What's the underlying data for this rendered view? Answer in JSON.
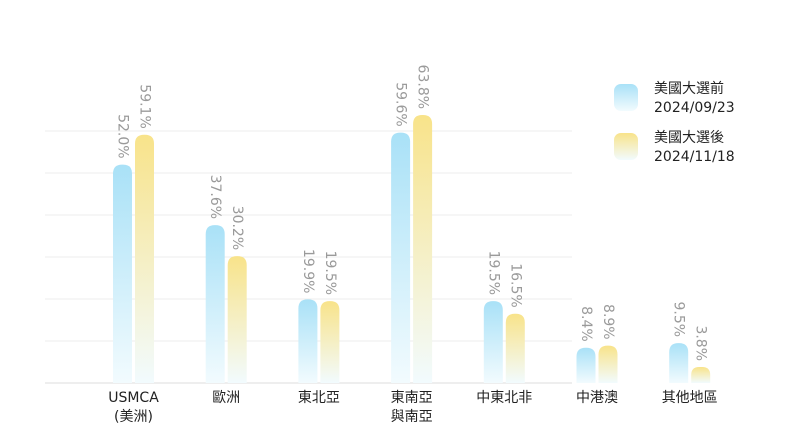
{
  "chart_data": {
    "type": "bar",
    "categories": [
      [
        "USMCA",
        "(美洲)"
      ],
      [
        "歐洲"
      ],
      [
        "東北亞"
      ],
      [
        "東南亞",
        "與南亞"
      ],
      [
        "中東北非"
      ],
      [
        "中港澳"
      ],
      [
        "其他地區"
      ]
    ],
    "series": [
      {
        "name": "美國大選前 2024/09/23",
        "legend_lines": [
          "美國大選前",
          "2024/09/23"
        ],
        "values": [
          52.0,
          37.6,
          19.9,
          59.6,
          19.5,
          8.4,
          9.5
        ],
        "labels": [
          "52.0%",
          "37.6%",
          "19.9%",
          "59.6%",
          "19.5%",
          "8.4%",
          "9.5%"
        ],
        "color_top": "#a9e1f7",
        "color_bottom": "#f2fbfe"
      },
      {
        "name": "美國大選後 2024/11/18",
        "legend_lines": [
          "美國大選後",
          "2024/11/18"
        ],
        "values": [
          59.1,
          30.2,
          19.5,
          63.8,
          16.5,
          8.9,
          3.8
        ],
        "labels": [
          "59.1%",
          "30.2%",
          "19.5%",
          "63.8%",
          "16.5%",
          "8.9%",
          "3.8%"
        ],
        "color_top": "#f8e38a",
        "color_bottom": "#f2fbfe"
      }
    ],
    "ylim": [
      0,
      70
    ],
    "grid": true,
    "legend": "top-right",
    "gridline_color": "#ececec",
    "baseline_color": "#dddddd"
  }
}
